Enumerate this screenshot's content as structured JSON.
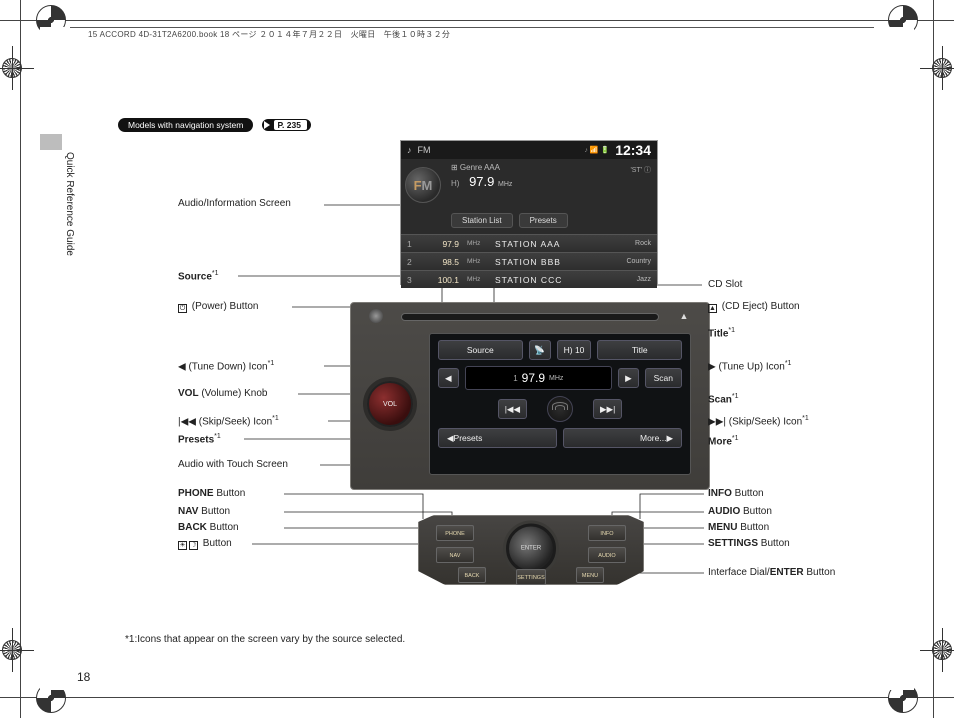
{
  "book_stamp": "15 ACCORD 4D-31T2A6200.book  18 ページ  ２０１４年７月２２日　火曜日　午後１０時３２分",
  "side_tab": "Quick Reference Guide",
  "page_number": "18",
  "header": {
    "models_pill": "Models with navigation system",
    "page_ref_letter": "P.",
    "page_ref_num": "235"
  },
  "footnote": "*1:Icons that appear on the screen vary by the source selected.",
  "labels_left": {
    "audio_info_screen": "Audio/Information Screen",
    "source": "Source",
    "power_btn": " (Power) Button",
    "tune_down": " (Tune Down) Icon",
    "vol_knob_pre": "VOL",
    "vol_knob": " (Volume) Knob",
    "skip_seek_l": " (Skip/Seek) Icon",
    "presets": "Presets",
    "audio_touch": "Audio with Touch Screen",
    "phone_btn_pre": "PHONE",
    "phone_btn": " Button",
    "nav_btn_pre": "NAV",
    "nav_btn": " Button",
    "back_btn_pre": "BACK",
    "back_btn": " Button",
    "bright_btn": " Button"
  },
  "labels_right": {
    "cd_slot": "CD Slot",
    "cd_eject": " (CD Eject) Button",
    "title": "Title",
    "tune_up": " (Tune Up) Icon",
    "scan": "Scan",
    "skip_seek_r": " (Skip/Seek) Icon",
    "more": "More",
    "info_btn_pre": "INFO",
    "info_btn": " Button",
    "audio_btn_pre": "AUDIO",
    "audio_btn": " Button",
    "menu_btn_pre": "MENU",
    "menu_btn": " Button",
    "settings_btn_pre": "SETTINGS",
    "settings_btn": " Button",
    "dial_btn_pre": "Interface Dial/",
    "dial_btn_bold": "ENTER",
    "dial_btn": " Button"
  },
  "radio_top": {
    "band": "FM",
    "clock": "12:34",
    "status_icons": "♪  📶 🔋",
    "st_tag": "'ST'  ⓘ",
    "genre_line": "⊞ Genre AAA",
    "freq": "97.9",
    "freq_unit": "MHz",
    "hd": "H)",
    "tabs": {
      "station_list": "Station List",
      "presets": "Presets"
    },
    "rows": [
      {
        "idx": "1",
        "freq": "97.9",
        "unit": "MHz",
        "name": "STATION AAA",
        "genre": "Rock"
      },
      {
        "idx": "2",
        "freq": "98.5",
        "unit": "MHz",
        "name": "STATION BBB",
        "genre": "Country"
      },
      {
        "idx": "3",
        "freq": "100.1",
        "unit": "MHz",
        "name": "STATION CCC",
        "genre": "Jazz"
      }
    ]
  },
  "unit": {
    "source": "Source",
    "hd_badge": "H) 10",
    "title": "Title",
    "freq_num": "1",
    "freq": "97.9",
    "freq_unit": "MHz",
    "scan": "Scan",
    "presets": "Presets",
    "more": "More..."
  },
  "panel": {
    "l1": "PHONE",
    "l2": "NAV",
    "l3": "BACK",
    "r1": "INFO",
    "r2": "AUDIO",
    "r3": "MENU",
    "c": "SETTINGS"
  },
  "leaders": {
    "stroke": "#222",
    "width": 0.8,
    "left": [
      {
        "from": [
          206,
          68
        ],
        "to": [
          286,
          68
        ]
      },
      {
        "from": [
          120,
          139
        ],
        "to": [
          324,
          139
        ],
        "down_to": 212
      },
      {
        "from": [
          174,
          170
        ],
        "to": [
          258,
          170
        ],
        "down_to": 178
      },
      {
        "from": [
          206,
          229
        ],
        "to": [
          316,
          229
        ],
        "down_to": 242
      },
      {
        "from": [
          180,
          257
        ],
        "to": [
          258,
          257
        ]
      },
      {
        "from": [
          210,
          284
        ],
        "to": [
          348,
          284
        ],
        "down_to": 290
      },
      {
        "from": [
          126,
          302
        ],
        "to": [
          326,
          302
        ],
        "down_to": 320
      },
      {
        "from": [
          202,
          328
        ],
        "to": [
          400,
          328
        ],
        "down_to": 346
      },
      {
        "from": [
          166,
          357
        ],
        "to": [
          305,
          357
        ],
        "down_to": 382
      },
      {
        "from": [
          166,
          375
        ],
        "to": [
          334,
          375
        ],
        "down_to": 392
      },
      {
        "from": [
          166,
          391
        ],
        "to": [
          319,
          391
        ],
        "down_to": 410
      },
      {
        "from": [
          134,
          407
        ],
        "to": [
          351,
          407
        ],
        "down_to": 434
      }
    ],
    "right": [
      {
        "from": [
          584,
          148
        ],
        "to": [
          376,
          148
        ],
        "down_to": 178
      },
      {
        "from": [
          586,
          170
        ],
        "to": [
          562,
          170
        ],
        "down_to": 178
      },
      {
        "from": [
          586,
          196
        ],
        "to": [
          508,
          196
        ],
        "down_to": 210
      },
      {
        "from": [
          586,
          229
        ],
        "to": [
          524,
          229
        ],
        "down_to": 242
      },
      {
        "from": [
          586,
          262
        ],
        "to": [
          538,
          262
        ],
        "down_to": 244
      },
      {
        "from": [
          586,
          284
        ],
        "to": [
          528,
          284
        ],
        "down_to": 290
      },
      {
        "from": [
          586,
          304
        ],
        "to": [
          522,
          304
        ],
        "down_to": 320
      },
      {
        "from": [
          586,
          357
        ],
        "to": [
          522,
          357
        ],
        "down_to": 382
      },
      {
        "from": [
          586,
          375
        ],
        "to": [
          494,
          375
        ],
        "down_to": 392
      },
      {
        "from": [
          586,
          391
        ],
        "to": [
          510,
          391
        ],
        "down_to": 410
      },
      {
        "from": [
          586,
          407
        ],
        "to": [
          480,
          407
        ],
        "down_to": 434
      },
      {
        "from": [
          586,
          436
        ],
        "to": [
          414,
          436
        ],
        "down_to": 414
      }
    ]
  }
}
